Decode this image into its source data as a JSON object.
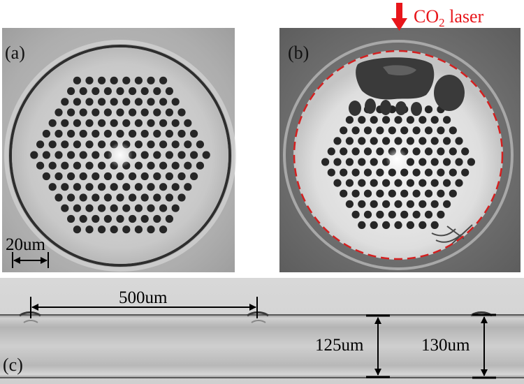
{
  "figure": {
    "panel_a": {
      "label": "(a)",
      "scale_bar_label": "20um"
    },
    "panel_b": {
      "label": "(b)",
      "laser_label_prefix": "CO",
      "laser_label_subscript": "2",
      "laser_label_suffix": " laser",
      "laser_color": "#e8161b",
      "outline_color": "#d42020"
    },
    "panel_c": {
      "label": "(c)",
      "spacing_label": "500um",
      "diameter_label_1": "125um",
      "diameter_label_2": "130um"
    }
  }
}
